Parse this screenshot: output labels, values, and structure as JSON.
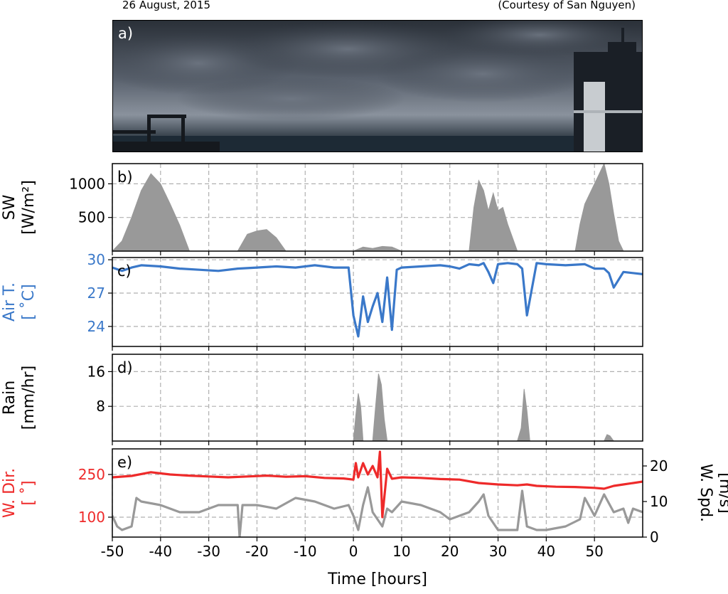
{
  "header": {
    "date": "26 August, 2015",
    "credit": "(Courtesy of San Nguyen)"
  },
  "photo": {
    "panel_label": "a)"
  },
  "colors": {
    "gray": "#999999",
    "blue": "#3a78c9",
    "red": "#ee2a2a",
    "grid": "#b0b0b0"
  },
  "chart_data": [
    {
      "type": "area",
      "panel_label": "b)",
      "ylabel": [
        "SW",
        "[W/m²]"
      ],
      "ylim": [
        0,
        1300
      ],
      "yticks": [
        500,
        1000
      ],
      "xlim": [
        -50,
        60
      ],
      "grid": true,
      "series": [
        {
          "color": "#999999",
          "x": [
            -50,
            -48,
            -46,
            -44,
            -42,
            -40,
            -38,
            -36,
            -34,
            -30,
            -26,
            -24,
            -22,
            -20,
            -18,
            -16,
            -14,
            -12,
            -10,
            -4,
            0,
            2,
            4,
            6,
            8,
            10,
            12,
            20,
            24,
            25,
            26,
            27,
            28,
            29,
            30,
            31,
            32,
            33,
            34,
            36,
            44,
            46,
            47,
            48,
            50,
            51,
            52,
            53,
            54,
            55,
            56,
            58,
            60
          ],
          "y": [
            0,
            150,
            500,
            900,
            1150,
            1000,
            700,
            380,
            0,
            0,
            0,
            0,
            250,
            300,
            320,
            200,
            0,
            0,
            0,
            0,
            0,
            60,
            40,
            70,
            60,
            0,
            0,
            0,
            0,
            650,
            1050,
            900,
            600,
            860,
            600,
            650,
            400,
            200,
            0,
            0,
            0,
            0,
            400,
            700,
            1000,
            1150,
            1300,
            1000,
            550,
            150,
            0,
            0,
            0
          ]
        }
      ]
    },
    {
      "type": "line",
      "panel_label": "c)",
      "ylabel": [
        "Air T.",
        "[ ˚C]"
      ],
      "ylim": [
        22.2,
        30.2
      ],
      "yticks": [
        24,
        27,
        30
      ],
      "xlim": [
        -50,
        60
      ],
      "grid": true,
      "series": [
        {
          "color": "#3a78c9",
          "x": [
            -50,
            -48,
            -46,
            -44,
            -40,
            -36,
            -32,
            -28,
            -24,
            -20,
            -16,
            -12,
            -8,
            -4,
            -1,
            0,
            1,
            2,
            3,
            4,
            5,
            6,
            7,
            8,
            9,
            10,
            14,
            18,
            20,
            22,
            24,
            26,
            27,
            28,
            29,
            30,
            32,
            34,
            35,
            36,
            38,
            40,
            44,
            48,
            50,
            52,
            53,
            54,
            56,
            60
          ],
          "y": [
            29.3,
            29.0,
            29.3,
            29.5,
            29.4,
            29.2,
            29.1,
            29.0,
            29.2,
            29.3,
            29.4,
            29.3,
            29.5,
            29.3,
            29.3,
            25.0,
            23.1,
            26.7,
            24.4,
            25.8,
            27.0,
            24.4,
            28.4,
            23.7,
            29.1,
            29.3,
            29.4,
            29.5,
            29.4,
            29.2,
            29.6,
            29.5,
            29.7,
            28.9,
            27.9,
            29.6,
            29.7,
            29.6,
            29.2,
            25.0,
            29.7,
            29.6,
            29.5,
            29.6,
            29.2,
            29.2,
            28.8,
            27.5,
            28.9,
            28.7
          ]
        }
      ]
    },
    {
      "type": "area",
      "panel_label": "d)",
      "ylabel": [
        "Rain",
        "[mm/hr]"
      ],
      "ylim": [
        0,
        20
      ],
      "yticks": [
        8,
        16
      ],
      "xlim": [
        -50,
        60
      ],
      "grid": true,
      "series": [
        {
          "color": "#999999",
          "x": [
            -50,
            -40,
            -30,
            0,
            0.5,
            1,
            1.5,
            2,
            2.5,
            4,
            4.6,
            5.2,
            5.8,
            6.4,
            7,
            8,
            34,
            34.8,
            35.4,
            36,
            36.6,
            37,
            52,
            52.6,
            53.2,
            54,
            60
          ],
          "y": [
            0,
            0,
            0,
            0,
            6,
            11,
            8,
            0,
            0,
            0,
            8,
            15.5,
            13,
            5,
            0,
            0,
            0,
            3,
            12,
            7,
            0,
            0,
            0,
            1.5,
            1.2,
            0,
            0
          ]
        }
      ]
    },
    {
      "type": "line",
      "panel_label": "e)",
      "ylabel": [
        "W. Dir.",
        "[ ˚]"
      ],
      "ylabel_right": [
        "W. Spd.",
        "[m/s]"
      ],
      "ylim": [
        30,
        340
      ],
      "yticks": [
        100,
        250
      ],
      "ylim_right": [
        0,
        24.8
      ],
      "yticks_right": [
        0,
        10,
        20
      ],
      "xlim": [
        -50,
        60
      ],
      "grid": true,
      "series": [
        {
          "name": "W. Dir.",
          "color": "#ee2a2a",
          "axis": "left",
          "x": [
            -50,
            -46,
            -42,
            -38,
            -34,
            -30,
            -26,
            -22,
            -18,
            -14,
            -10,
            -6,
            -2,
            0,
            0.5,
            1,
            2,
            3,
            4,
            5,
            5.5,
            6,
            7,
            8,
            10,
            14,
            18,
            22,
            26,
            30,
            34,
            36,
            38,
            42,
            46,
            50,
            52,
            54,
            56,
            60
          ],
          "y": [
            240,
            245,
            258,
            250,
            246,
            243,
            240,
            243,
            246,
            242,
            244,
            238,
            236,
            232,
            290,
            240,
            290,
            250,
            280,
            240,
            330,
            100,
            270,
            235,
            240,
            238,
            234,
            232,
            220,
            215,
            212,
            215,
            210,
            207,
            206,
            203,
            200,
            210,
            215,
            225
          ]
        },
        {
          "name": "W. Spd.",
          "color": "#999999",
          "axis": "right",
          "x": [
            -50,
            -49,
            -48,
            -46,
            -45,
            -44,
            -40,
            -36,
            -32,
            -30,
            -28,
            -26,
            -24,
            -23.6,
            -23,
            -20,
            -16,
            -12,
            -8,
            -4,
            -1,
            0,
            1,
            2,
            3,
            4,
            5,
            6,
            7,
            8,
            10,
            14,
            18,
            20,
            22,
            24,
            26,
            27,
            28,
            30,
            32,
            34,
            35,
            36,
            38,
            40,
            44,
            47,
            48,
            50,
            52,
            54,
            56,
            57,
            58,
            60
          ],
          "y": [
            6,
            3,
            2,
            3,
            11,
            10,
            9,
            7,
            7,
            8,
            9,
            9,
            9,
            0,
            9,
            9,
            8,
            11,
            10,
            8,
            9,
            6,
            2,
            9,
            14,
            7,
            5,
            3,
            8,
            7,
            10,
            9,
            7,
            5,
            6,
            7,
            10,
            12,
            6,
            2,
            2,
            2,
            13,
            3,
            2,
            2,
            3,
            5,
            11,
            6,
            12,
            7,
            8,
            4,
            8,
            7
          ]
        }
      ]
    }
  ],
  "xaxis": {
    "label": "Time [hours]",
    "ticks": [
      -50,
      -40,
      -30,
      -20,
      -10,
      0,
      10,
      20,
      30,
      40,
      50
    ]
  }
}
